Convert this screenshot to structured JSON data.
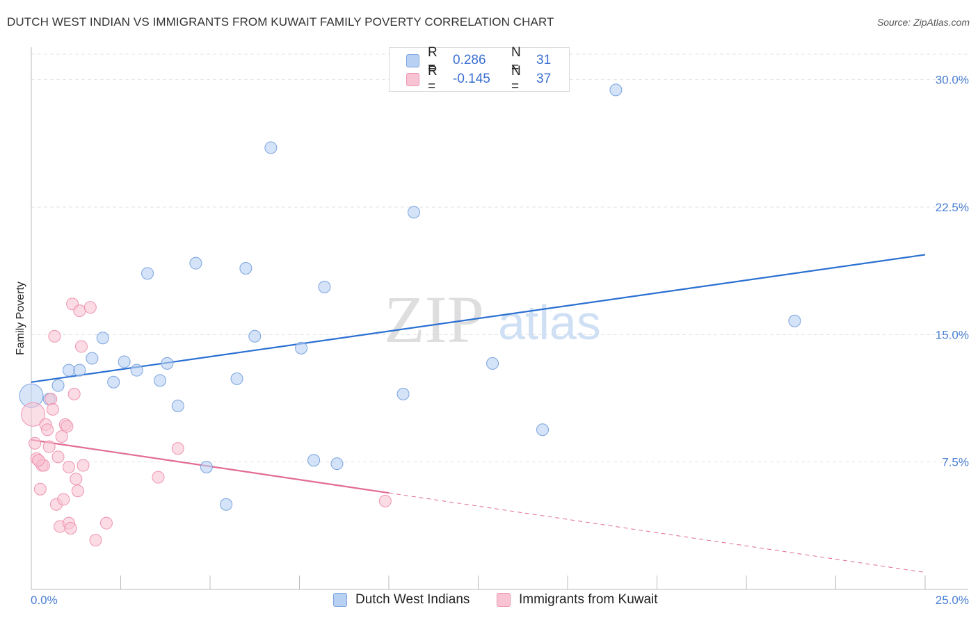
{
  "title": "DUTCH WEST INDIAN VS IMMIGRANTS FROM KUWAIT FAMILY POVERTY CORRELATION CHART",
  "source": "Source: ZipAtlas.com",
  "watermark": {
    "zip": "ZIP",
    "atlas": "atlas"
  },
  "legend": {
    "rows": [
      {
        "r_label": "R =",
        "r_value": "0.286",
        "n_label": "N =",
        "n_value": "31"
      },
      {
        "r_label": "R =",
        "r_value": "-0.145",
        "n_label": "N =",
        "n_value": "37"
      }
    ]
  },
  "colors": {
    "blue_fill": "#b8d0f2",
    "blue_stroke": "#7aa3e0",
    "blue_line": "#2a6fd1",
    "pink_fill": "#f8c4d3",
    "pink_stroke": "#ee93b0",
    "pink_line": "#e26b93",
    "grid": "#e3e3e3",
    "axis": "#bbbbbb",
    "tick_text": "#4a7fd4"
  },
  "chart_data": {
    "type": "scatter",
    "title": "DUTCH WEST INDIAN VS IMMIGRANTS FROM KUWAIT FAMILY POVERTY CORRELATION CHART",
    "xlabel": "",
    "ylabel": "Family Poverty",
    "xlim": [
      0,
      25
    ],
    "ylim": [
      0,
      31.5
    ],
    "x_tick_labels": [
      "0.0%",
      "25.0%"
    ],
    "y_ticks": [
      7.5,
      15.0,
      22.5,
      30.0
    ],
    "y_tick_labels": [
      "7.5%",
      "15.0%",
      "22.5%",
      "30.0%"
    ],
    "grid": true,
    "legend_position": "top-center",
    "series": [
      {
        "name": "Dutch West Indians",
        "r": 0.286,
        "n": 31,
        "trend": {
          "x": [
            0,
            25
          ],
          "y": [
            12.2,
            19.7
          ],
          "dashed_from": null
        },
        "points": [
          {
            "x": 0.0,
            "y": 11.4,
            "big": true
          },
          {
            "x": 0.5,
            "y": 11.2
          },
          {
            "x": 0.75,
            "y": 12.0
          },
          {
            "x": 1.05,
            "y": 12.9
          },
          {
            "x": 1.35,
            "y": 12.9
          },
          {
            "x": 1.7,
            "y": 13.6
          },
          {
            "x": 2.0,
            "y": 14.8
          },
          {
            "x": 2.3,
            "y": 12.2
          },
          {
            "x": 2.6,
            "y": 13.4
          },
          {
            "x": 2.95,
            "y": 12.9
          },
          {
            "x": 3.25,
            "y": 18.6
          },
          {
            "x": 3.6,
            "y": 12.3
          },
          {
            "x": 3.8,
            "y": 13.3
          },
          {
            "x": 4.1,
            "y": 10.8
          },
          {
            "x": 4.6,
            "y": 19.2
          },
          {
            "x": 4.9,
            "y": 7.2
          },
          {
            "x": 5.45,
            "y": 5.0
          },
          {
            "x": 5.75,
            "y": 12.4
          },
          {
            "x": 6.0,
            "y": 18.9
          },
          {
            "x": 6.25,
            "y": 14.9
          },
          {
            "x": 6.7,
            "y": 26.0
          },
          {
            "x": 7.55,
            "y": 14.2
          },
          {
            "x": 7.9,
            "y": 7.6
          },
          {
            "x": 8.2,
            "y": 17.8
          },
          {
            "x": 8.55,
            "y": 7.4
          },
          {
            "x": 10.4,
            "y": 11.5
          },
          {
            "x": 10.7,
            "y": 22.2
          },
          {
            "x": 12.9,
            "y": 13.3
          },
          {
            "x": 14.3,
            "y": 9.4
          },
          {
            "x": 16.35,
            "y": 29.4
          },
          {
            "x": 21.35,
            "y": 15.8
          }
        ]
      },
      {
        "name": "Immigrants from Kuwait",
        "r": -0.145,
        "n": 37,
        "trend": {
          "x": [
            0,
            25
          ],
          "y": [
            8.8,
            1.0
          ],
          "dashed_from": 10.0
        },
        "points": [
          {
            "x": 0.05,
            "y": 10.3,
            "big": true
          },
          {
            "x": 0.1,
            "y": 8.6
          },
          {
            "x": 0.15,
            "y": 7.7
          },
          {
            "x": 0.2,
            "y": 7.6
          },
          {
            "x": 0.25,
            "y": 5.9
          },
          {
            "x": 0.3,
            "y": 7.3
          },
          {
            "x": 0.35,
            "y": 7.3
          },
          {
            "x": 0.4,
            "y": 9.7
          },
          {
            "x": 0.45,
            "y": 9.4
          },
          {
            "x": 0.5,
            "y": 8.4
          },
          {
            "x": 0.55,
            "y": 11.2
          },
          {
            "x": 0.6,
            "y": 10.6
          },
          {
            "x": 0.65,
            "y": 14.9
          },
          {
            "x": 0.7,
            "y": 5.0
          },
          {
            "x": 0.75,
            "y": 7.8
          },
          {
            "x": 0.8,
            "y": 3.7
          },
          {
            "x": 0.85,
            "y": 9.0
          },
          {
            "x": 0.9,
            "y": 5.3
          },
          {
            "x": 0.95,
            "y": 9.7
          },
          {
            "x": 1.0,
            "y": 9.6
          },
          {
            "x": 1.05,
            "y": 7.2
          },
          {
            "x": 1.05,
            "y": 3.9
          },
          {
            "x": 1.1,
            "y": 3.6
          },
          {
            "x": 1.15,
            "y": 16.8
          },
          {
            "x": 1.2,
            "y": 11.5
          },
          {
            "x": 1.25,
            "y": 6.5
          },
          {
            "x": 1.3,
            "y": 5.8
          },
          {
            "x": 1.35,
            "y": 16.4
          },
          {
            "x": 1.4,
            "y": 14.3
          },
          {
            "x": 1.45,
            "y": 7.3
          },
          {
            "x": 1.65,
            "y": 16.6
          },
          {
            "x": 1.8,
            "y": 2.9
          },
          {
            "x": 2.1,
            "y": 3.9
          },
          {
            "x": 3.55,
            "y": 6.6
          },
          {
            "x": 4.1,
            "y": 8.3
          },
          {
            "x": 9.9,
            "y": 5.2
          },
          {
            "x": 0.2,
            "y": 7.6
          }
        ]
      }
    ]
  }
}
